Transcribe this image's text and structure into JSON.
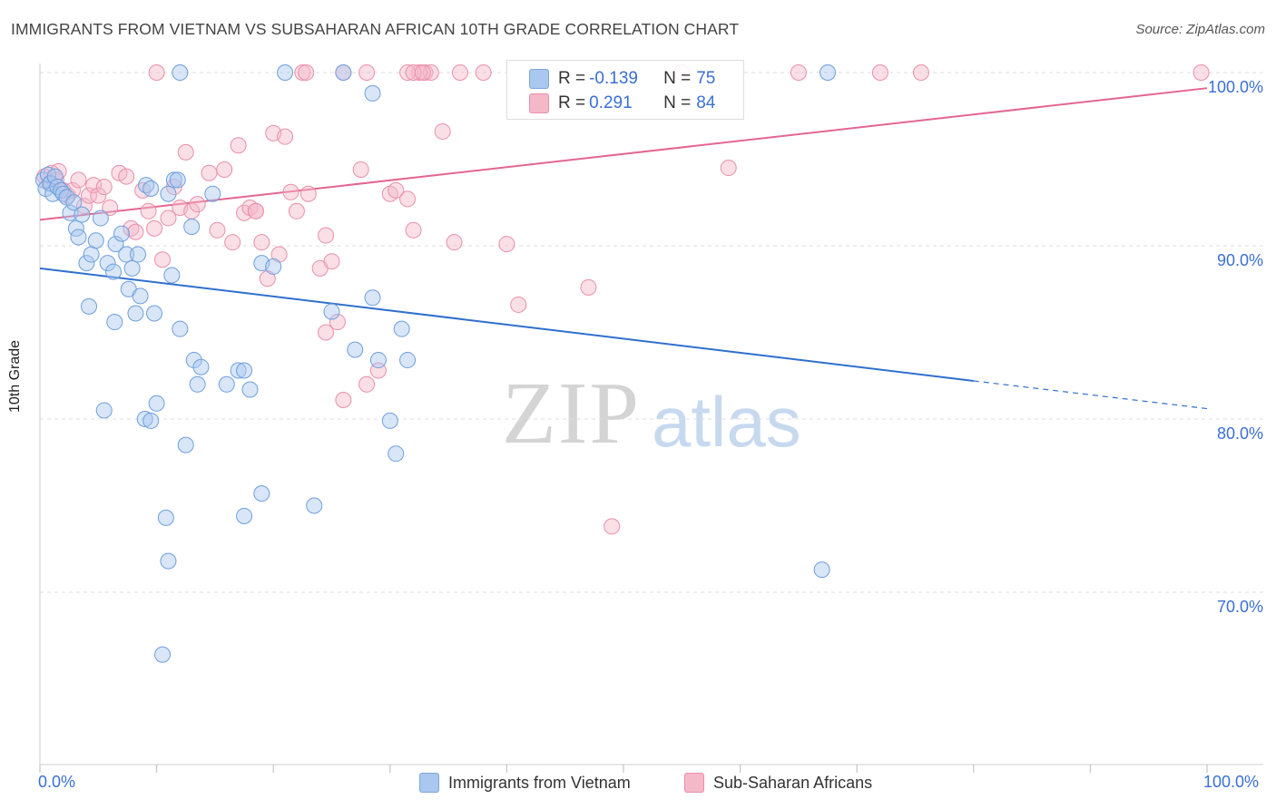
{
  "title": "IMMIGRANTS FROM VIETNAM VS SUBSAHARAN AFRICAN 10TH GRADE CORRELATION CHART",
  "source": "Source: ZipAtlas.com",
  "watermark": {
    "zip": "ZIP",
    "atlas": "atlas"
  },
  "legend": {
    "r_label": "R =",
    "n_label": "N =",
    "rows": [
      {
        "r": "-0.139",
        "n": "75",
        "color": "#a9c7ef"
      },
      {
        "r": "0.291",
        "n": "84",
        "color": "#f4b8c9"
      }
    ]
  },
  "colors": {
    "blue_fill": "#a9c7ef",
    "blue_line": "#2f6fce",
    "pink_fill": "#f4b8c9",
    "pink_line": "#e4668f",
    "tick_text": "#3b6fd4"
  },
  "chart_data": {
    "type": "scatter",
    "title": "IMMIGRANTS FROM VIETNAM VS SUBSAHARAN AFRICAN 10TH GRADE CORRELATION CHART",
    "xlabel": "",
    "ylabel": "10th Grade",
    "xlim": [
      0,
      100
    ],
    "ylim": [
      59,
      102
    ],
    "x_tick_labels": [
      "0.0%",
      "100.0%"
    ],
    "y_ticks": [
      70,
      80,
      90,
      100
    ],
    "y_tick_labels": [
      "70.0%",
      "80.0%",
      "90.0%",
      "100.0%"
    ],
    "grid": true,
    "legend_position": "top-center",
    "series": [
      {
        "name": "Immigrants from Vietnam",
        "color": "#a9c7ef",
        "trend": {
          "x0": 0,
          "y0": 88.7,
          "x1": 80,
          "y1": 82.2,
          "dashed_to_x": 100,
          "dashed_to_y": 80.6
        },
        "points": [
          [
            0.3,
            93.8
          ],
          [
            0.5,
            93.3
          ],
          [
            0.7,
            94.1
          ],
          [
            0.9,
            93.6
          ],
          [
            1.1,
            93.0
          ],
          [
            1.3,
            94.0
          ],
          [
            1.5,
            93.4
          ],
          [
            1.8,
            93.2
          ],
          [
            2.0,
            93.0
          ],
          [
            2.3,
            92.8
          ],
          [
            2.6,
            91.9
          ],
          [
            2.9,
            92.5
          ],
          [
            3.1,
            91.0
          ],
          [
            3.3,
            90.5
          ],
          [
            3.6,
            91.8
          ],
          [
            4.0,
            89.0
          ],
          [
            4.4,
            89.5
          ],
          [
            4.8,
            90.3
          ],
          [
            5.2,
            91.6
          ],
          [
            5.8,
            89.0
          ],
          [
            6.3,
            88.5
          ],
          [
            6.5,
            90.1
          ],
          [
            7.0,
            90.7
          ],
          [
            7.4,
            89.5
          ],
          [
            7.6,
            87.5
          ],
          [
            7.9,
            88.7
          ],
          [
            8.2,
            86.1
          ],
          [
            8.4,
            89.5
          ],
          [
            8.6,
            87.1
          ],
          [
            9.1,
            93.5
          ],
          [
            9.5,
            93.3
          ],
          [
            9.8,
            86.1
          ],
          [
            11.0,
            93.0
          ],
          [
            11.3,
            88.3
          ],
          [
            11.5,
            93.8
          ],
          [
            11.8,
            93.8
          ],
          [
            12.0,
            85.2
          ],
          [
            13.0,
            91.1
          ],
          [
            13.2,
            83.4
          ],
          [
            13.5,
            82.0
          ],
          [
            13.8,
            83.0
          ],
          [
            14.8,
            93.0
          ],
          [
            6.4,
            85.6
          ],
          [
            4.2,
            86.5
          ],
          [
            5.5,
            80.5
          ],
          [
            9.0,
            80.0
          ],
          [
            9.5,
            79.9
          ],
          [
            10.0,
            80.9
          ],
          [
            11.0,
            71.8
          ],
          [
            12.5,
            78.5
          ],
          [
            16.0,
            82.0
          ],
          [
            17.0,
            82.8
          ],
          [
            17.5,
            82.8
          ],
          [
            18.0,
            81.7
          ],
          [
            19.0,
            89.0
          ],
          [
            20.0,
            88.8
          ],
          [
            19.0,
            75.7
          ],
          [
            17.5,
            74.4
          ],
          [
            10.5,
            66.4
          ],
          [
            10.8,
            74.3
          ],
          [
            12.0,
            100.0
          ],
          [
            21.0,
            100.0
          ],
          [
            26.0,
            100.0
          ],
          [
            29.0,
            83.4
          ],
          [
            28.5,
            87.0
          ],
          [
            27.0,
            84.0
          ],
          [
            23.5,
            75.0
          ],
          [
            25.0,
            86.2
          ],
          [
            30.0,
            79.9
          ],
          [
            30.5,
            78.0
          ],
          [
            28.5,
            98.8
          ],
          [
            31.0,
            85.2
          ],
          [
            31.5,
            83.4
          ],
          [
            67.0,
            71.3
          ],
          [
            67.5,
            100.0
          ]
        ]
      },
      {
        "name": "Sub-Saharan Africans",
        "color": "#f4b8c9",
        "trend": {
          "x0": 0,
          "y0": 91.5,
          "x1": 100,
          "y1": 99.1
        },
        "points": [
          [
            0.4,
            94.0
          ],
          [
            0.8,
            93.6
          ],
          [
            1.0,
            94.2
          ],
          [
            1.4,
            93.8
          ],
          [
            1.6,
            94.3
          ],
          [
            2.0,
            93.2
          ],
          [
            2.4,
            92.9
          ],
          [
            2.8,
            93.2
          ],
          [
            3.3,
            93.8
          ],
          [
            3.8,
            92.3
          ],
          [
            4.2,
            92.9
          ],
          [
            4.6,
            93.5
          ],
          [
            5.0,
            92.9
          ],
          [
            5.5,
            93.4
          ],
          [
            6.0,
            92.2
          ],
          [
            6.8,
            94.2
          ],
          [
            7.4,
            94.0
          ],
          [
            7.8,
            91.0
          ],
          [
            8.2,
            90.8
          ],
          [
            8.8,
            93.2
          ],
          [
            9.3,
            92.0
          ],
          [
            9.8,
            91.0
          ],
          [
            10.5,
            89.2
          ],
          [
            11.0,
            91.6
          ],
          [
            11.5,
            93.4
          ],
          [
            12.0,
            92.2
          ],
          [
            12.5,
            95.4
          ],
          [
            13.0,
            92.0
          ],
          [
            13.5,
            92.4
          ],
          [
            14.5,
            94.2
          ],
          [
            15.2,
            90.9
          ],
          [
            15.8,
            94.4
          ],
          [
            16.5,
            90.2
          ],
          [
            17.0,
            95.8
          ],
          [
            17.5,
            91.9
          ],
          [
            18.0,
            92.2
          ],
          [
            18.5,
            92.0
          ],
          [
            19.0,
            90.2
          ],
          [
            19.5,
            88.1
          ],
          [
            20.0,
            96.5
          ],
          [
            20.5,
            89.5
          ],
          [
            21.0,
            96.3
          ],
          [
            21.5,
            93.1
          ],
          [
            22.0,
            92.0
          ],
          [
            23.0,
            93.0
          ],
          [
            24.0,
            88.7
          ],
          [
            24.5,
            90.6
          ],
          [
            25.0,
            89.1
          ],
          [
            25.5,
            85.6
          ],
          [
            26.0,
            81.1
          ],
          [
            27.5,
            94.4
          ],
          [
            28.0,
            82.0
          ],
          [
            29.0,
            82.8
          ],
          [
            30.0,
            93.0
          ],
          [
            30.5,
            93.2
          ],
          [
            31.5,
            92.7
          ],
          [
            32.0,
            90.9
          ],
          [
            33.0,
            100.0
          ],
          [
            34.5,
            96.6
          ],
          [
            35.5,
            90.2
          ],
          [
            38.0,
            100.0
          ],
          [
            40.0,
            90.1
          ],
          [
            41.0,
            86.6
          ],
          [
            47.0,
            87.6
          ],
          [
            49.0,
            73.8
          ],
          [
            59.0,
            94.5
          ],
          [
            24.5,
            85.0
          ],
          [
            22.5,
            100.0
          ],
          [
            22.8,
            100.0
          ],
          [
            26.0,
            100.0
          ],
          [
            33.5,
            100.0
          ],
          [
            32.5,
            100.0
          ],
          [
            31.5,
            100.0
          ],
          [
            32.0,
            100.0
          ],
          [
            32.8,
            100.0
          ],
          [
            36.0,
            100.0
          ],
          [
            55.0,
            100.0
          ],
          [
            65.0,
            100.0
          ],
          [
            72.0,
            100.0
          ],
          [
            75.5,
            100.0
          ],
          [
            99.5,
            100.0
          ],
          [
            10.0,
            100.0
          ],
          [
            28.0,
            100.0
          ],
          [
            18.5,
            92.0
          ]
        ]
      }
    ]
  },
  "legend_bottom": [
    "Immigrants from Vietnam",
    "Sub-Saharan Africans"
  ]
}
